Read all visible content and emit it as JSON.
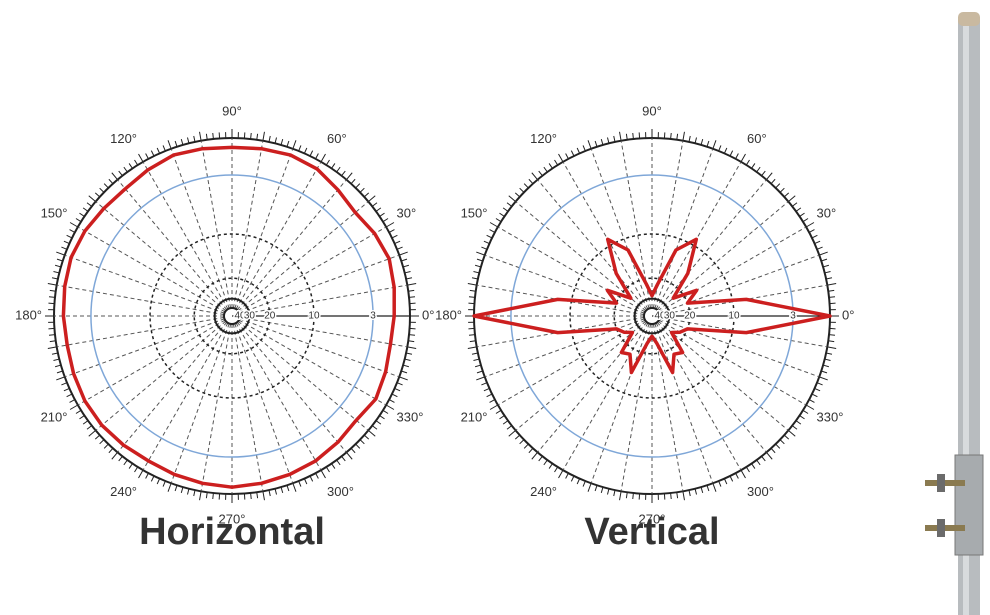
{
  "chart_data": [
    {
      "type": "polar",
      "title": "Horizontal",
      "theta": [
        0,
        10,
        20,
        30,
        40,
        50,
        60,
        70,
        80,
        90,
        100,
        110,
        120,
        130,
        140,
        150,
        160,
        170,
        180,
        190,
        200,
        210,
        220,
        230,
        240,
        250,
        260,
        270,
        280,
        290,
        300,
        310,
        320,
        330,
        340,
        350
      ],
      "series": [
        {
          "color": "#cc1f1f",
          "values": [
            -1.2,
            -1.0,
            -0.8,
            -1.0,
            -1.3,
            -1.0,
            -0.6,
            -0.5,
            -0.6,
            -0.7,
            -0.6,
            -0.5,
            -0.7,
            -0.9,
            -0.8,
            -0.6,
            -0.5,
            -0.6,
            -0.7,
            -0.8,
            -0.7,
            -0.6,
            -0.6,
            -0.7,
            -0.8,
            -0.7,
            -0.6,
            -0.5,
            -0.6,
            -0.7,
            -0.8,
            -1.0,
            -1.2,
            -0.9,
            -1.1,
            -1.3
          ]
        }
      ],
      "rlim": [
        -40,
        0
      ],
      "rticks": [
        {
          "value": -40,
          "label": "40"
        },
        {
          "value": -30,
          "label": "30"
        },
        {
          "value": -20,
          "label": "20"
        },
        {
          "value": -10,
          "label": "10"
        },
        {
          "value": -3,
          "label": "3"
        }
      ],
      "thetaticks": [
        {
          "value": 0,
          "label": "0°"
        },
        {
          "value": 30,
          "label": "30°"
        },
        {
          "value": 60,
          "label": "60°"
        },
        {
          "value": 90,
          "label": "90°"
        },
        {
          "value": 120,
          "label": "120°"
        },
        {
          "value": 150,
          "label": "150°"
        },
        {
          "value": 180,
          "label": "180°"
        },
        {
          "value": 210,
          "label": "210°"
        },
        {
          "value": 240,
          "label": "240°"
        },
        {
          "value": 270,
          "label": "270°"
        },
        {
          "value": 300,
          "label": "300°"
        },
        {
          "value": 330,
          "label": "330°"
        }
      ]
    },
    {
      "type": "polar",
      "title": "Vertical",
      "theta": [
        0,
        10,
        20,
        30,
        40,
        50,
        60,
        70,
        80,
        90,
        100,
        110,
        120,
        130,
        140,
        150,
        160,
        170,
        180,
        190,
        200,
        210,
        220,
        230,
        240,
        250,
        260,
        270,
        280,
        290,
        300,
        310,
        320,
        330,
        340,
        350
      ],
      "series": [
        {
          "color": "#cc1f1f",
          "values": [
            0,
            -8,
            -20,
            -16,
            -24,
            -15,
            -9,
            -12,
            -22,
            -28,
            -22,
            -12,
            -9,
            -15,
            -24,
            -16,
            -20,
            -8,
            0,
            -8,
            -20,
            -22,
            -25,
            -17,
            -18,
            -14,
            -24,
            -28,
            -24,
            -14,
            -18,
            -17,
            -25,
            -22,
            -20,
            -8
          ]
        }
      ],
      "rlim": [
        -40,
        0
      ],
      "rticks": [
        {
          "value": -40,
          "label": "40"
        },
        {
          "value": -30,
          "label": "30"
        },
        {
          "value": -20,
          "label": "20"
        },
        {
          "value": -10,
          "label": "10"
        },
        {
          "value": -3,
          "label": "3"
        }
      ],
      "thetaticks": [
        {
          "value": 0,
          "label": "0°"
        },
        {
          "value": 30,
          "label": "30°"
        },
        {
          "value": 60,
          "label": "60°"
        },
        {
          "value": 90,
          "label": "90°"
        },
        {
          "value": 120,
          "label": "120°"
        },
        {
          "value": 150,
          "label": "150°"
        },
        {
          "value": 180,
          "label": "180°"
        },
        {
          "value": 210,
          "label": "210°"
        },
        {
          "value": 240,
          "label": "240°"
        },
        {
          "value": 270,
          "label": "270°"
        },
        {
          "value": 300,
          "label": "300°"
        },
        {
          "value": 330,
          "label": "330°"
        }
      ]
    }
  ]
}
